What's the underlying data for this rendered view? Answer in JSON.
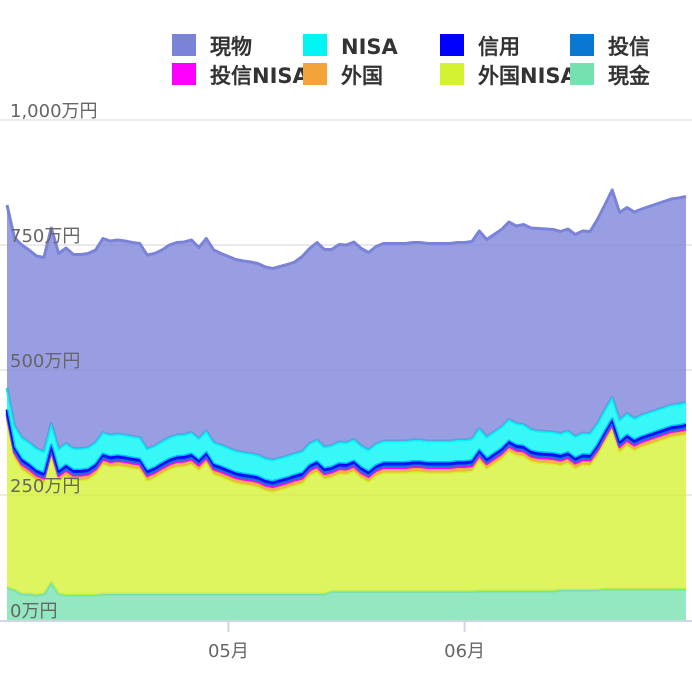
{
  "chart_data": {
    "type": "area",
    "stacked": true,
    "legend_position": "top",
    "grid": true,
    "ylim": [
      0,
      1000
    ],
    "y_ticks": [
      {
        "value": 0,
        "label": "0万円"
      },
      {
        "value": 250,
        "label": "250万円"
      },
      {
        "value": 500,
        "label": "500万円"
      },
      {
        "value": 750,
        "label": "750万円"
      },
      {
        "value": 1000,
        "label": "1,000万円"
      }
    ],
    "x_ticks": [
      {
        "index": 30,
        "label": "05月"
      },
      {
        "index": 62,
        "label": "06月"
      }
    ],
    "x": [
      0,
      1,
      2,
      3,
      4,
      5,
      6,
      7,
      8,
      9,
      10,
      11,
      12,
      13,
      14,
      15,
      16,
      17,
      18,
      19,
      20,
      21,
      22,
      23,
      24,
      25,
      26,
      27,
      28,
      29,
      30,
      31,
      32,
      33,
      34,
      35,
      36,
      37,
      38,
      39,
      40,
      41,
      42,
      43,
      44,
      45,
      46,
      47,
      48,
      49,
      50,
      51,
      52,
      53,
      54,
      55,
      56,
      57,
      58,
      59,
      60,
      61,
      62,
      63,
      64,
      65,
      66,
      67,
      68,
      69,
      70,
      71,
      72,
      73,
      74,
      75,
      76,
      77,
      78,
      79,
      80,
      81,
      82,
      83,
      84,
      85,
      86,
      87,
      88,
      89,
      90,
      91,
      92
    ],
    "series": [
      {
        "name": "現金",
        "color": "#75e0b0",
        "values": [
          65,
          60,
          52,
          52,
          50,
          52,
          75,
          52,
          50,
          50,
          50,
          50,
          50,
          52,
          52,
          52,
          52,
          52,
          52,
          52,
          52,
          52,
          52,
          52,
          52,
          52,
          52,
          52,
          52,
          52,
          52,
          52,
          52,
          52,
          52,
          52,
          52,
          52,
          52,
          52,
          52,
          52,
          52,
          52,
          57,
          57,
          57,
          57,
          57,
          57,
          57,
          57,
          57,
          57,
          57,
          57,
          57,
          57,
          57,
          57,
          57,
          57,
          57,
          57,
          58,
          58,
          58,
          58,
          58,
          58,
          58,
          58,
          58,
          58,
          58,
          60,
          60,
          60,
          60,
          60,
          60,
          62,
          62,
          62,
          62,
          62,
          62,
          62,
          62,
          62,
          62,
          62,
          62
        ]
      },
      {
        "name": "外国NISA",
        "color": "#d5f232",
        "values": [
          336,
          266,
          250,
          240,
          230,
          222,
          255,
          227,
          240,
          230,
          230,
          232,
          242,
          260,
          255,
          257,
          255,
          252,
          250,
          227,
          233,
          242,
          250,
          255,
          256,
          260,
          248,
          263,
          240,
          235,
          229,
          223,
          220,
          218,
          215,
          208,
          205,
          209,
          213,
          218,
          222,
          238,
          245,
          231,
          229,
          236,
          235,
          241,
          228,
          220,
          232,
          238,
          238,
          238,
          238,
          240,
          240,
          238,
          238,
          238,
          238,
          240,
          240,
          242,
          262,
          245,
          255,
          265,
          280,
          272,
          270,
          260,
          257,
          256,
          255,
          250,
          255,
          244,
          251,
          250,
          270,
          295,
          320,
          275,
          288,
          278,
          285,
          290,
          295,
          300,
          305,
          307,
          310
        ]
      },
      {
        "name": "外国",
        "color": "#f2a33a",
        "values": [
          8,
          8,
          8,
          8,
          8,
          8,
          8,
          8,
          8,
          8,
          8,
          8,
          8,
          8,
          8,
          8,
          8,
          8,
          8,
          8,
          8,
          8,
          8,
          8,
          8,
          8,
          8,
          8,
          8,
          8,
          8,
          8,
          8,
          8,
          8,
          8,
          8,
          8,
          8,
          8,
          8,
          8,
          8,
          8,
          8,
          8,
          8,
          8,
          8,
          8,
          8,
          8,
          8,
          8,
          8,
          8,
          8,
          8,
          8,
          8,
          8,
          8,
          8,
          8,
          8,
          8,
          8,
          8,
          8,
          8,
          8,
          8,
          8,
          8,
          8,
          8,
          8,
          8,
          8,
          8,
          8,
          8,
          8,
          8,
          8,
          8,
          8,
          8,
          8,
          8,
          8,
          8,
          8
        ]
      },
      {
        "name": "投信NISA",
        "color": "#ff00ff",
        "values": [
          2,
          2,
          2,
          2,
          2,
          2,
          2,
          2,
          2,
          2,
          2,
          2,
          2,
          2,
          2,
          2,
          2,
          2,
          2,
          2,
          2,
          2,
          2,
          2,
          2,
          2,
          2,
          2,
          2,
          2,
          2,
          2,
          2,
          2,
          2,
          2,
          2,
          2,
          2,
          2,
          2,
          2,
          2,
          2,
          2,
          2,
          2,
          2,
          2,
          2,
          2,
          2,
          2,
          2,
          2,
          2,
          2,
          2,
          2,
          2,
          2,
          2,
          2,
          2,
          2,
          2,
          2,
          2,
          2,
          2,
          2,
          2,
          2,
          2,
          2,
          2,
          2,
          2,
          2,
          2,
          2,
          2,
          2,
          2,
          2,
          2,
          2,
          2,
          2,
          2,
          2,
          2,
          2
        ]
      },
      {
        "name": "投信",
        "color": "#0a78d2",
        "values": [
          4,
          4,
          4,
          4,
          4,
          4,
          4,
          4,
          4,
          4,
          4,
          4,
          4,
          4,
          4,
          4,
          4,
          4,
          4,
          4,
          4,
          4,
          4,
          4,
          4,
          4,
          4,
          4,
          4,
          4,
          4,
          4,
          4,
          4,
          4,
          4,
          4,
          4,
          4,
          4,
          4,
          4,
          4,
          4,
          4,
          4,
          4,
          4,
          4,
          4,
          4,
          4,
          4,
          4,
          4,
          4,
          4,
          4,
          4,
          4,
          4,
          4,
          4,
          4,
          4,
          4,
          4,
          4,
          4,
          4,
          4,
          4,
          4,
          4,
          4,
          4,
          4,
          4,
          4,
          4,
          4,
          4,
          4,
          4,
          4,
          4,
          4,
          4,
          4,
          4,
          4,
          4,
          4
        ]
      },
      {
        "name": "信用",
        "color": "#0000ff",
        "values": [
          6,
          6,
          6,
          6,
          6,
          6,
          6,
          6,
          6,
          6,
          6,
          6,
          6,
          6,
          6,
          6,
          6,
          6,
          6,
          6,
          6,
          6,
          6,
          6,
          6,
          6,
          6,
          6,
          6,
          6,
          6,
          6,
          6,
          6,
          6,
          6,
          6,
          6,
          6,
          6,
          6,
          6,
          6,
          6,
          6,
          6,
          6,
          6,
          6,
          6,
          6,
          6,
          6,
          6,
          6,
          6,
          6,
          6,
          6,
          6,
          6,
          6,
          6,
          6,
          6,
          6,
          6,
          6,
          6,
          6,
          6,
          6,
          6,
          6,
          6,
          6,
          6,
          6,
          6,
          6,
          6,
          6,
          6,
          6,
          6,
          6,
          6,
          6,
          6,
          6,
          6,
          6,
          6
        ]
      },
      {
        "name": "NISA",
        "color": "#00f5f5",
        "values": [
          43,
          43,
          43,
          43,
          43,
          43,
          43,
          43,
          43,
          43,
          43,
          43,
          43,
          43,
          43,
          43,
          43,
          43,
          43,
          43,
          43,
          43,
          43,
          43,
          43,
          43,
          43,
          43,
          43,
          43,
          43,
          43,
          43,
          43,
          43,
          43,
          43,
          43,
          43,
          43,
          43,
          43,
          43,
          43,
          43,
          43,
          43,
          43,
          43,
          43,
          43,
          43,
          43,
          43,
          43,
          43,
          43,
          43,
          43,
          43,
          43,
          43,
          43,
          43,
          43,
          43,
          43,
          43,
          43,
          43,
          43,
          43,
          43,
          43,
          43,
          43,
          43,
          43,
          43,
          43,
          43,
          43,
          43,
          43,
          43,
          43,
          43,
          43,
          43,
          43,
          43,
          43,
          43
        ]
      },
      {
        "name": "現物",
        "color": "#7b83d9",
        "values": [
          366,
          376,
          385,
          385,
          385,
          388,
          391,
          391,
          391,
          388,
          388,
          388,
          385,
          388,
          388,
          388,
          388,
          388,
          388,
          388,
          385,
          383,
          385,
          385,
          385,
          385,
          382,
          385,
          385,
          383,
          383,
          383,
          383,
          383,
          383,
          383,
          383,
          383,
          383,
          383,
          390,
          390,
          395,
          395,
          392,
          395,
          395,
          395,
          395,
          395,
          395,
          395,
          395,
          395,
          395,
          395,
          395,
          395,
          395,
          395,
          395,
          395,
          395,
          395,
          395,
          395,
          395,
          395,
          395,
          395,
          400,
          403,
          405,
          405,
          405,
          404,
          404,
          404,
          404,
          404,
          408,
          410,
          415,
          415,
          412,
          413,
          412,
          412,
          412,
          412,
          412,
          412,
          412
        ]
      }
    ]
  }
}
